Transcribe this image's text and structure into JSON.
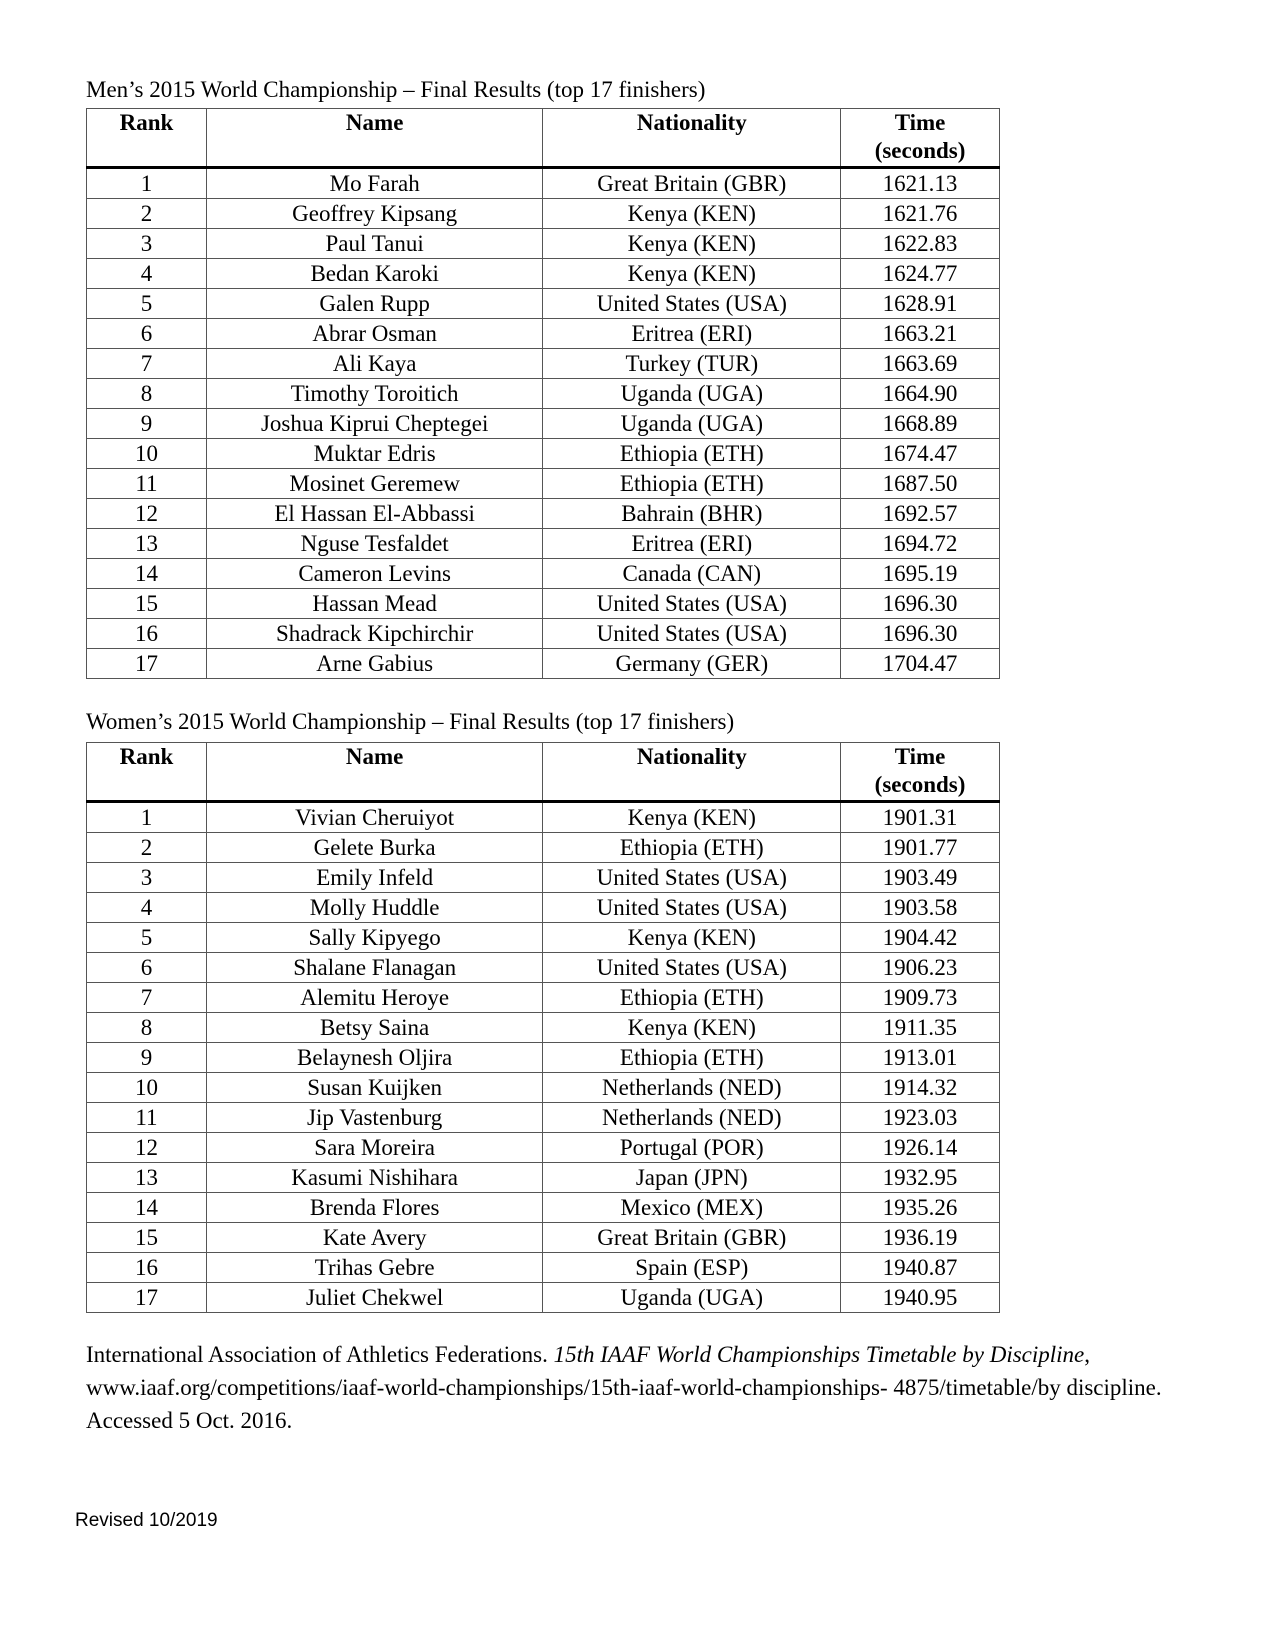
{
  "men": {
    "title": "Men’s 2015 World Championship – Final Results (top 17 finishers)",
    "headers": [
      "Rank",
      "Name",
      "Nationality",
      "Time (seconds)"
    ],
    "rows": [
      [
        "1",
        "Mo Farah",
        "Great Britain (GBR)",
        "1621.13"
      ],
      [
        "2",
        "Geoffrey Kipsang",
        "Kenya (KEN)",
        "1621.76"
      ],
      [
        "3",
        "Paul Tanui",
        "Kenya (KEN)",
        "1622.83"
      ],
      [
        "4",
        "Bedan Karoki",
        "Kenya (KEN)",
        "1624.77"
      ],
      [
        "5",
        "Galen Rupp",
        "United States (USA)",
        "1628.91"
      ],
      [
        "6",
        "Abrar Osman",
        "Eritrea (ERI)",
        "1663.21"
      ],
      [
        "7",
        "Ali Kaya",
        "Turkey (TUR)",
        "1663.69"
      ],
      [
        "8",
        "Timothy Toroitich",
        "Uganda (UGA)",
        "1664.90"
      ],
      [
        "9",
        "Joshua Kiprui Cheptegei",
        "Uganda (UGA)",
        "1668.89"
      ],
      [
        "10",
        "Muktar Edris",
        "Ethiopia (ETH)",
        "1674.47"
      ],
      [
        "11",
        "Mosinet Geremew",
        "Ethiopia (ETH)",
        "1687.50"
      ],
      [
        "12",
        "El Hassan El-Abbassi",
        "Bahrain (BHR)",
        "1692.57"
      ],
      [
        "13",
        "Nguse Tesfaldet",
        "Eritrea (ERI)",
        "1694.72"
      ],
      [
        "14",
        "Cameron Levins",
        "Canada (CAN)",
        "1695.19"
      ],
      [
        "15",
        "Hassan Mead",
        "United States (USA)",
        "1696.30"
      ],
      [
        "16",
        "Shadrack Kipchirchir",
        "United States (USA)",
        "1696.30"
      ],
      [
        "17",
        "Arne Gabius",
        "Germany (GER)",
        "1704.47"
      ]
    ]
  },
  "women": {
    "title": "Women’s 2015 World Championship – Final Results (top 17 finishers)",
    "headers": [
      "Rank",
      "Name",
      "Nationality",
      "Time (seconds)"
    ],
    "rows": [
      [
        "1",
        "Vivian Cheruiyot",
        "Kenya (KEN)",
        "1901.31"
      ],
      [
        "2",
        "Gelete Burka",
        "Ethiopia (ETH)",
        "1901.77"
      ],
      [
        "3",
        "Emily Infeld",
        "United States (USA)",
        "1903.49"
      ],
      [
        "4",
        "Molly Huddle",
        "United States (USA)",
        "1903.58"
      ],
      [
        "5",
        "Sally Kipyego",
        "Kenya (KEN)",
        "1904.42"
      ],
      [
        "6",
        "Shalane Flanagan",
        "United States (USA)",
        "1906.23"
      ],
      [
        "7",
        "Alemitu Heroye",
        "Ethiopia (ETH)",
        "1909.73"
      ],
      [
        "8",
        "Betsy Saina",
        "Kenya (KEN)",
        "1911.35"
      ],
      [
        "9",
        "Belaynesh Oljira",
        "Ethiopia (ETH)",
        "1913.01"
      ],
      [
        "10",
        "Susan Kuijken",
        "Netherlands (NED)",
        "1914.32"
      ],
      [
        "11",
        "Jip Vastenburg",
        "Netherlands (NED)",
        "1923.03"
      ],
      [
        "12",
        "Sara Moreira",
        "Portugal (POR)",
        "1926.14"
      ],
      [
        "13",
        "Kasumi Nishihara",
        "Japan (JPN)",
        "1932.95"
      ],
      [
        "14",
        "Brenda Flores",
        "Mexico (MEX)",
        "1935.26"
      ],
      [
        "15",
        "Kate Avery",
        "Great Britain (GBR)",
        "1936.19"
      ],
      [
        "16",
        "Trihas Gebre",
        "Spain (ESP)",
        "1940.87"
      ],
      [
        "17",
        "Juliet Chekwel",
        "Uganda (UGA)",
        "1940.95"
      ]
    ]
  },
  "citation": {
    "author": "International Association of Athletics Federations. ",
    "work": "15th IAAF World Championships Timetable by Discipline",
    "rest": ", www.iaaf.org/competitions/iaaf-world-championships/15th-iaaf-world-championships- 4875/timetable/by discipline. Accessed 5 Oct. 2016."
  },
  "footer": "Revised 10/2019"
}
